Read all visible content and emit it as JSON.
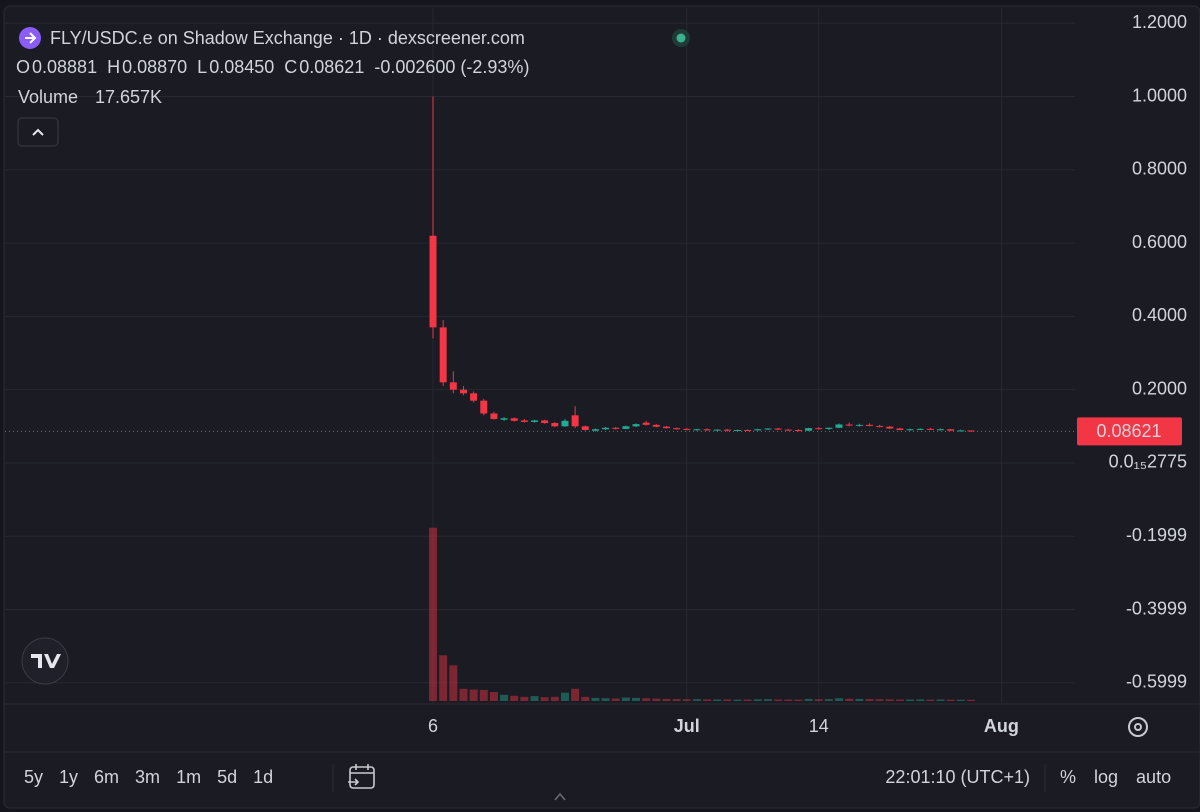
{
  "header": {
    "title": "FLY/USDC.e on Shadow Exchange · 1D · dexscreener.com",
    "ohlc": [
      {
        "key": "O",
        "value": "0.08881"
      },
      {
        "key": "H",
        "value": "0.08870"
      },
      {
        "key": "L",
        "value": "0.08450"
      },
      {
        "key": "C",
        "value": "0.08621"
      }
    ],
    "change": "-0.002600 (-2.93%)",
    "volume_label": "Volume",
    "volume_value": "17.657K"
  },
  "toolbar": {
    "ranges": [
      "5y",
      "1y",
      "6m",
      "3m",
      "1m",
      "5d",
      "1d"
    ],
    "time": "22:01:10 (UTC+1)",
    "scale_buttons": [
      "%",
      "log",
      "auto"
    ]
  },
  "chart_data": {
    "type": "candlestick",
    "x": [
      0,
      1,
      2,
      3,
      4,
      5,
      6,
      7,
      8,
      9,
      10,
      11,
      12,
      13,
      14,
      15,
      16,
      17,
      18,
      19,
      20,
      21,
      22,
      23,
      24,
      25,
      26,
      27,
      28,
      29,
      30,
      31,
      32,
      33,
      34,
      35,
      36,
      37,
      38,
      39,
      40,
      41,
      42,
      43,
      44,
      45,
      46,
      47,
      48,
      49,
      50,
      51,
      52,
      53
    ],
    "open": [
      0.62,
      0.37,
      0.22,
      0.2,
      0.19,
      0.17,
      0.135,
      0.118,
      0.122,
      0.116,
      0.112,
      0.116,
      0.109,
      0.1,
      0.13,
      0.1,
      0.088,
      0.092,
      0.096,
      0.093,
      0.1,
      0.11,
      0.104,
      0.099,
      0.095,
      0.093,
      0.09,
      0.092,
      0.089,
      0.091,
      0.088,
      0.09,
      0.089,
      0.092,
      0.094,
      0.091,
      0.09,
      0.088,
      0.095,
      0.093,
      0.096,
      0.105,
      0.102,
      0.104,
      0.101,
      0.099,
      0.094,
      0.09,
      0.092,
      0.093,
      0.091,
      0.092,
      0.088,
      0.08881
    ],
    "high": [
      1.0,
      0.39,
      0.25,
      0.21,
      0.195,
      0.175,
      0.14,
      0.125,
      0.124,
      0.12,
      0.118,
      0.118,
      0.112,
      0.12,
      0.155,
      0.102,
      0.094,
      0.098,
      0.098,
      0.102,
      0.108,
      0.115,
      0.106,
      0.101,
      0.097,
      0.095,
      0.093,
      0.094,
      0.092,
      0.093,
      0.091,
      0.092,
      0.093,
      0.095,
      0.096,
      0.093,
      0.092,
      0.096,
      0.098,
      0.097,
      0.108,
      0.11,
      0.107,
      0.108,
      0.104,
      0.101,
      0.096,
      0.094,
      0.095,
      0.096,
      0.094,
      0.093,
      0.091,
      0.0887
    ],
    "low": [
      0.34,
      0.21,
      0.19,
      0.185,
      0.165,
      0.13,
      0.118,
      0.115,
      0.113,
      0.11,
      0.11,
      0.107,
      0.098,
      0.098,
      0.095,
      0.088,
      0.086,
      0.09,
      0.091,
      0.092,
      0.098,
      0.102,
      0.097,
      0.094,
      0.091,
      0.089,
      0.088,
      0.088,
      0.087,
      0.086,
      0.086,
      0.087,
      0.088,
      0.09,
      0.09,
      0.088,
      0.086,
      0.087,
      0.091,
      0.09,
      0.095,
      0.1,
      0.099,
      0.1,
      0.097,
      0.093,
      0.089,
      0.088,
      0.09,
      0.09,
      0.089,
      0.087,
      0.087,
      0.0845
    ],
    "close": [
      0.37,
      0.22,
      0.2,
      0.19,
      0.17,
      0.135,
      0.12,
      0.122,
      0.115,
      0.112,
      0.116,
      0.109,
      0.1,
      0.115,
      0.1,
      0.09,
      0.092,
      0.096,
      0.093,
      0.1,
      0.106,
      0.104,
      0.099,
      0.095,
      0.092,
      0.09,
      0.092,
      0.089,
      0.091,
      0.088,
      0.09,
      0.089,
      0.092,
      0.094,
      0.091,
      0.09,
      0.088,
      0.095,
      0.093,
      0.096,
      0.105,
      0.102,
      0.104,
      0.101,
      0.099,
      0.094,
      0.09,
      0.092,
      0.093,
      0.091,
      0.092,
      0.088,
      0.0888,
      0.08621
    ],
    "volume": [
      2500000,
      660000,
      515000,
      176000,
      165000,
      160000,
      130000,
      90000,
      75000,
      60000,
      70000,
      55000,
      60000,
      120000,
      176000,
      60000,
      45000,
      40000,
      35000,
      50000,
      45000,
      40000,
      35000,
      30000,
      28000,
      25000,
      26000,
      24000,
      22000,
      23000,
      20000,
      21000,
      24000,
      26000,
      22000,
      21000,
      20000,
      30000,
      25000,
      27000,
      40000,
      32000,
      30000,
      28000,
      25000,
      24000,
      22000,
      21000,
      23000,
      20000,
      21000,
      19000,
      18000,
      17657
    ],
    "xlim": [
      -42.17,
      63.25
    ],
    "xticks": [
      {
        "value": 0,
        "label": "6"
      },
      {
        "value": 25,
        "label": "Jul"
      },
      {
        "value": 38,
        "label": "14"
      },
      {
        "value": 56,
        "label": "Aug"
      }
    ],
    "ylim": [
      -0.655,
      1.2415
    ],
    "yticks": [
      {
        "value": 1.2,
        "label": "1.2000"
      },
      {
        "value": 1,
        "label": "1.0000"
      },
      {
        "value": 0.8,
        "label": "0.8000"
      },
      {
        "value": 0.6,
        "label": "0.6000"
      },
      {
        "value": 0.4,
        "label": "0.4000"
      },
      {
        "value": 0.2,
        "label": "0.2000"
      },
      {
        "value": 2.775e-16,
        "label": "0.0₁₅2775"
      },
      -0.1999,
      -0.3999,
      -0.5999
    ],
    "volume_ylim": [
      0,
      2900000
    ],
    "last_price": 0.08621,
    "up_color": "#22ab94",
    "down_color": "#f23645",
    "grid": true
  }
}
